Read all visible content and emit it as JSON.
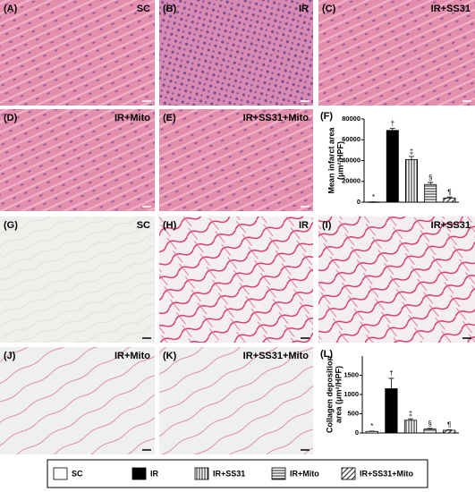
{
  "panels": [
    {
      "letter": "(A)",
      "label": "SC"
    },
    {
      "letter": "(B)",
      "label": "IR"
    },
    {
      "letter": "(C)",
      "label": "IR+SS31"
    },
    {
      "letter": "(D)",
      "label": "IR+Mito"
    },
    {
      "letter": "(E)",
      "label": "IR+SS31+Mito"
    },
    {
      "letter": "(G)",
      "label": "SC"
    },
    {
      "letter": "(H)",
      "label": "IR"
    },
    {
      "letter": "(I)",
      "label": "IR+SS31"
    },
    {
      "letter": "(J)",
      "label": "IR+Mito"
    },
    {
      "letter": "(K)",
      "label": "IR+SS31+Mito"
    }
  ],
  "chart_data": [
    {
      "type": "bar",
      "label": "(F)",
      "ylabel": [
        "Mean infarct area",
        "(μm²/HPF)"
      ],
      "categories": [
        "SC",
        "IR",
        "IR+SS31",
        "IR+Mito",
        "IR+SS31+Mito"
      ],
      "values": [
        200,
        69000,
        41000,
        17000,
        4000
      ],
      "errors": [
        100,
        2000,
        3000,
        2000,
        1000
      ],
      "annotations": [
        "*",
        "†",
        "‡",
        "§",
        "¶"
      ],
      "patterns": [
        "none",
        "solid",
        "vertical",
        "horizontal",
        "diagonal"
      ],
      "ylim": [
        0,
        80000
      ],
      "yticks": [
        0,
        20000,
        40000,
        60000,
        80000
      ]
    },
    {
      "type": "bar",
      "label": "(L)",
      "ylabel": [
        "Collagen deposition",
        "area (μm²/HPF)"
      ],
      "categories": [
        "SC",
        "IR",
        "IR+SS31",
        "IR+Mito",
        "IR+SS31+Mito"
      ],
      "values": [
        40,
        1150,
        330,
        100,
        70
      ],
      "errors": [
        10,
        270,
        40,
        20,
        10
      ],
      "annotations": [
        "*",
        "†",
        "‡",
        "§",
        "¶"
      ],
      "patterns": [
        "none",
        "solid",
        "vertical",
        "horizontal",
        "diagonal"
      ],
      "ylim": [
        0,
        2000
      ],
      "yticks": [
        0,
        500,
        1000,
        1500
      ]
    }
  ]
}
